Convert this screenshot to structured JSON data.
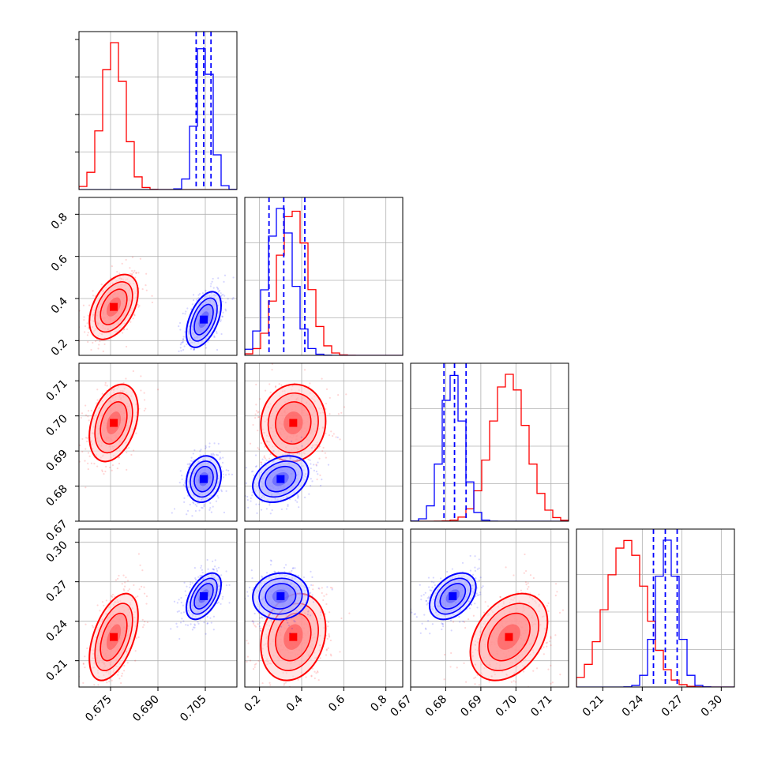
{
  "chart_data": {
    "type": "corner",
    "title": "",
    "parameters": [
      {
        "range": [
          0.665,
          0.715
        ],
        "ticks": [
          0.675,
          0.69,
          0.705
        ],
        "tick_labels": [
          "0.675",
          "0.690",
          "0.705"
        ]
      },
      {
        "range": [
          0.13,
          0.88
        ],
        "ticks": [
          0.2,
          0.4,
          0.6,
          0.8
        ],
        "tick_labels": [
          "0.2",
          "0.4",
          "0.6",
          "0.8"
        ]
      },
      {
        "range": [
          0.67,
          0.715
        ],
        "ticks": [
          0.67,
          0.68,
          0.69,
          0.7,
          0.71
        ],
        "tick_labels": [
          "0.67",
          "0.68",
          "0.69",
          "0.70",
          "0.71"
        ]
      },
      {
        "range": [
          0.19,
          0.31
        ],
        "ticks": [
          0.21,
          0.24,
          0.27,
          0.3
        ],
        "tick_labels": [
          "0.21",
          "0.24",
          "0.27",
          "0.30"
        ]
      }
    ],
    "series": [
      {
        "color": "#ff0000",
        "means": [
          0.676,
          0.36,
          0.698,
          0.228
        ],
        "sds": [
          0.0035,
          0.07,
          0.005,
          0.015
        ],
        "correlations": [
          [
            0,
            1,
            0.45
          ],
          [
            0,
            2,
            0.35
          ],
          [
            0,
            3,
            0.5
          ],
          [
            1,
            2,
            0.05
          ],
          [
            1,
            3,
            0.2
          ],
          [
            2,
            3,
            0.35
          ]
        ]
      },
      {
        "color": "#0000ff",
        "means": [
          0.7045,
          0.3,
          0.682,
          0.259
        ],
        "sds": [
          0.0025,
          0.06,
          0.003,
          0.008
        ],
        "correlations": [
          [
            0,
            1,
            0.5
          ],
          [
            0,
            2,
            0.15
          ],
          [
            0,
            3,
            0.5
          ],
          [
            1,
            2,
            0.3
          ],
          [
            1,
            3,
            0.05
          ],
          [
            2,
            3,
            0.4
          ]
        ],
        "quantiles": [
          [
            0.7021,
            0.7045,
            0.7068
          ],
          [
            0.245,
            0.315,
            0.415
          ],
          [
            0.6795,
            0.6825,
            0.6858
          ],
          [
            0.2485,
            0.2575,
            0.2665
          ]
        ]
      }
    ],
    "grid": true,
    "quantile_lines": "dashed"
  }
}
